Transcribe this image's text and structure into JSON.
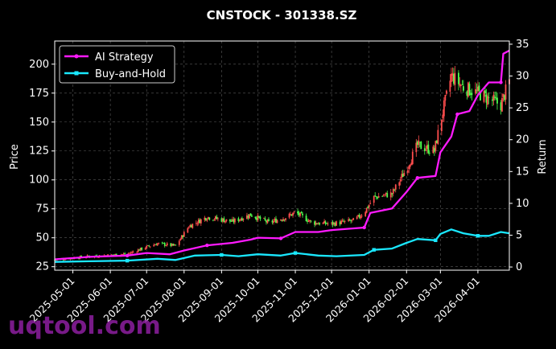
{
  "chart_data": {
    "type": "line",
    "title": "CNSTOCK - 301338.SZ",
    "ylabel": "Price",
    "y2label": "Return",
    "ylim": [
      22,
      220
    ],
    "y2lim": [
      -0.5,
      35.5
    ],
    "grid": true,
    "legend_position": "top-left",
    "x_tick_labels": [
      "2025-05-01",
      "2025-06-01",
      "2025-07-01",
      "2025-08-01",
      "2025-09-01",
      "2025-10-01",
      "2025-11-01",
      "2025-12-01",
      "2026-01-01",
      "2026-02-01",
      "2026-03-01",
      "2026-04-01"
    ],
    "y_ticks": [
      25,
      50,
      75,
      100,
      125,
      150,
      175,
      200
    ],
    "y2_ticks": [
      0,
      5,
      10,
      15,
      20,
      25,
      30,
      35
    ],
    "x_range": [
      "2025-04-16",
      "2026-04-27"
    ],
    "price_keypoints": [
      [
        "2025-04-16",
        31
      ],
      [
        "2025-05-15",
        34
      ],
      [
        "2025-06-15",
        36
      ],
      [
        "2025-07-01",
        42
      ],
      [
        "2025-07-10",
        45
      ],
      [
        "2025-07-25",
        43
      ],
      [
        "2025-08-05",
        60
      ],
      [
        "2025-08-20",
        68
      ],
      [
        "2025-09-10",
        64
      ],
      [
        "2025-09-25",
        70
      ],
      [
        "2025-10-10",
        63
      ],
      [
        "2025-10-25",
        68
      ],
      [
        "2025-11-01",
        72
      ],
      [
        "2025-11-15",
        63
      ],
      [
        "2025-12-01",
        62
      ],
      [
        "2025-12-20",
        65
      ],
      [
        "2025-12-28",
        72
      ],
      [
        "2026-01-05",
        85
      ],
      [
        "2026-01-20",
        88
      ],
      [
        "2026-02-01",
        110
      ],
      [
        "2026-02-10",
        130
      ],
      [
        "2026-02-24",
        125
      ],
      [
        "2026-03-01",
        150
      ],
      [
        "2026-03-10",
        190
      ],
      [
        "2026-03-20",
        180
      ],
      [
        "2026-04-01",
        175
      ],
      [
        "2026-04-10",
        170
      ],
      [
        "2026-04-20",
        165
      ],
      [
        "2026-04-27",
        185
      ]
    ],
    "series": [
      {
        "name": "AI Strategy",
        "color": "#ff1aff",
        "axis": "right",
        "values": [
          [
            "2025-04-16",
            1.2
          ],
          [
            "2025-05-15",
            1.6
          ],
          [
            "2025-06-15",
            1.8
          ],
          [
            "2025-07-01",
            2.2
          ],
          [
            "2025-07-20",
            2.0
          ],
          [
            "2025-08-01",
            2.6
          ],
          [
            "2025-08-20",
            3.4
          ],
          [
            "2025-09-10",
            3.8
          ],
          [
            "2025-09-25",
            4.3
          ],
          [
            "2025-10-01",
            4.6
          ],
          [
            "2025-10-20",
            4.5
          ],
          [
            "2025-11-01",
            5.5
          ],
          [
            "2025-11-20",
            5.5
          ],
          [
            "2025-12-01",
            5.8
          ],
          [
            "2025-12-28",
            6.2
          ],
          [
            "2026-01-02",
            8.5
          ],
          [
            "2026-01-20",
            9.2
          ],
          [
            "2026-02-01",
            11.8
          ],
          [
            "2026-02-10",
            14.0
          ],
          [
            "2026-02-25",
            14.3
          ],
          [
            "2026-03-01",
            18.0
          ],
          [
            "2026-03-10",
            20.5
          ],
          [
            "2026-03-15",
            24.0
          ],
          [
            "2026-03-25",
            24.5
          ],
          [
            "2026-04-01",
            27.0
          ],
          [
            "2026-04-10",
            29.0
          ],
          [
            "2026-04-20",
            29.0
          ],
          [
            "2026-04-22",
            33.5
          ],
          [
            "2026-04-27",
            34.0
          ]
        ]
      },
      {
        "name": "Buy-and-Hold",
        "color": "#1ae8ff",
        "axis": "right",
        "values": [
          [
            "2025-04-16",
            0.8
          ],
          [
            "2025-05-15",
            0.9
          ],
          [
            "2025-06-15",
            1.0
          ],
          [
            "2025-07-10",
            1.3
          ],
          [
            "2025-07-25",
            1.1
          ],
          [
            "2025-08-10",
            1.8
          ],
          [
            "2025-09-01",
            1.9
          ],
          [
            "2025-09-15",
            1.7
          ],
          [
            "2025-10-01",
            2.0
          ],
          [
            "2025-10-20",
            1.8
          ],
          [
            "2025-11-01",
            2.2
          ],
          [
            "2025-11-20",
            1.8
          ],
          [
            "2025-12-05",
            1.7
          ],
          [
            "2025-12-28",
            1.9
          ],
          [
            "2026-01-05",
            2.7
          ],
          [
            "2026-01-20",
            2.9
          ],
          [
            "2026-02-01",
            3.8
          ],
          [
            "2026-02-10",
            4.4
          ],
          [
            "2026-02-25",
            4.2
          ],
          [
            "2026-03-01",
            5.2
          ],
          [
            "2026-03-10",
            5.9
          ],
          [
            "2026-03-20",
            5.3
          ],
          [
            "2026-04-01",
            4.9
          ],
          [
            "2026-04-10",
            4.9
          ],
          [
            "2026-04-20",
            5.5
          ],
          [
            "2026-04-27",
            5.3
          ]
        ]
      }
    ]
  },
  "watermark": "uqtool.com",
  "colors": {
    "up": "#ff4d4d",
    "down": "#4dff4d",
    "grid": "#5a5a5a",
    "background": "#000000"
  }
}
